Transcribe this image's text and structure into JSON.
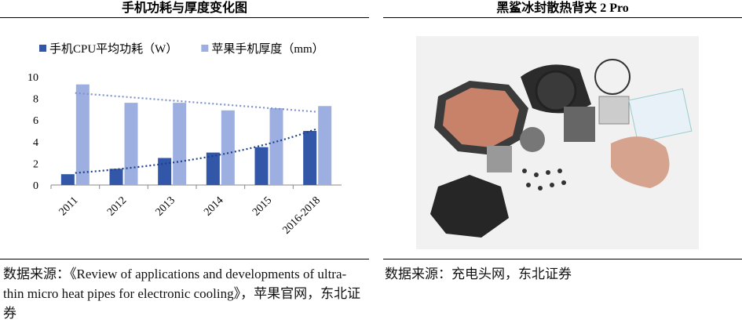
{
  "left_title": "手机功耗与厚度变化图",
  "chart_data": {
    "type": "bar",
    "categories": [
      "2011",
      "2012",
      "2013",
      "2014",
      "2015",
      "2016-2018"
    ],
    "series": [
      {
        "name": "手机CPU平均功耗（W）",
        "color": "#3256a8",
        "values": [
          1,
          1.5,
          2.5,
          3,
          3.5,
          5
        ],
        "trend": "exponential"
      },
      {
        "name": "苹果手机厚度（mm）",
        "color": "#9dafe0",
        "values": [
          9.3,
          7.6,
          7.6,
          6.9,
          7.1,
          7.3
        ],
        "trend": "linear"
      }
    ],
    "ylim": [
      0,
      10
    ],
    "yticks": [
      0,
      2,
      4,
      6,
      8,
      10
    ],
    "grid": false,
    "legend": "top"
  },
  "left_source": "数据来源：《Review of applications and developments of ultra-thin micro heat pipes for electronic cooling》，苹果官网，东北证券",
  "right_title": "黑鲨冰封散热背夹 2 Pro",
  "right_source": "数据来源：充电头网，东北证券"
}
